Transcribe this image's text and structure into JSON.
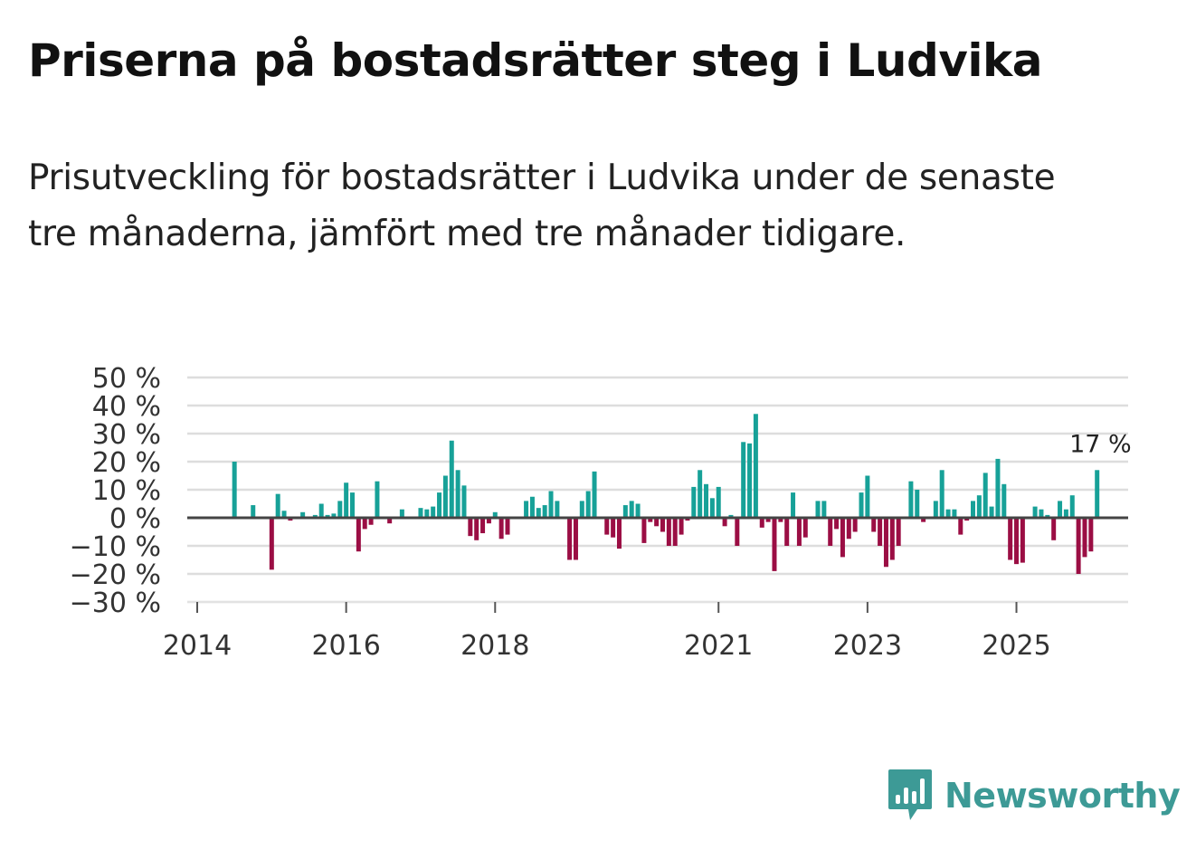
{
  "title": "Priserna på bostadsrätter steg i Ludvika",
  "subtitle": "Prisutveckling för bostadsrätter i Ludvika under de senaste tre månaderna, jämfört med tre månader tidigare.",
  "logo": {
    "text": "Newsworthy",
    "icon": "bar-chart-logo-icon",
    "color": "#3d9a96"
  },
  "colors": {
    "positive": "#17a198",
    "negative": "#9b0e44",
    "grid": "#dddddd",
    "zero_line": "#444444"
  },
  "chart_data": {
    "type": "bar",
    "title": "Priserna på bostadsrätter steg i Ludvika",
    "xlabel": "",
    "ylabel": "",
    "ylim": [
      -30,
      50
    ],
    "y_ticks": [
      50,
      40,
      30,
      20,
      10,
      0,
      -10,
      -20,
      -30
    ],
    "y_tick_labels": [
      "50 %",
      "40 %",
      "30 %",
      "20 %",
      "10 %",
      "0 %",
      "−10 %",
      "−20 %",
      "−30 %"
    ],
    "x_ticks": [
      {
        "label": "2014",
        "month_index": 0
      },
      {
        "label": "2016",
        "month_index": 24
      },
      {
        "label": "2018",
        "month_index": 48
      },
      {
        "label": "2021",
        "month_index": 84
      },
      {
        "label": "2023",
        "month_index": 108
      },
      {
        "label": "2025",
        "month_index": 132
      }
    ],
    "start_month_index": 6,
    "annotation": {
      "label": "17 %",
      "value": 17
    },
    "series": [
      {
        "name": "Prisutveckling",
        "start": "2014-07",
        "frequency": "monthly",
        "values": [
          20,
          0,
          0,
          4.5,
          0,
          0,
          -18.5,
          8.5,
          2.5,
          -1,
          0,
          2,
          0,
          1,
          5,
          1,
          1.5,
          6,
          12.5,
          9,
          -12,
          -4,
          -2.5,
          13,
          0,
          -2,
          0,
          3,
          0,
          0,
          3.5,
          3,
          4,
          9,
          15,
          27.5,
          17,
          11.5,
          -6.5,
          -8,
          -5.5,
          -2,
          2,
          -7.5,
          -6,
          0,
          0,
          6,
          7.5,
          3.5,
          4.5,
          9.5,
          6,
          0,
          -15,
          -15,
          6,
          9.5,
          16.5,
          0,
          -6,
          -7,
          -11,
          4.5,
          6,
          5,
          -9,
          -1.5,
          -3,
          -5,
          -10,
          -10,
          -6,
          -1,
          11,
          17,
          12,
          7,
          11,
          -3,
          1,
          -10,
          27,
          26.5,
          37,
          -3.5,
          -1.5,
          -19,
          -1.5,
          -10,
          9,
          -10,
          -7,
          0,
          6,
          6,
          -10,
          -4,
          -14,
          -7.5,
          -5,
          9,
          15,
          -5,
          -10,
          -17.5,
          -15,
          -10,
          0,
          13,
          10,
          -1.5,
          0,
          6,
          17,
          3,
          3,
          -6,
          -1,
          6,
          8,
          16,
          4,
          21,
          12,
          -15,
          -16.5,
          -16,
          0,
          4,
          3,
          1,
          -8,
          6,
          3,
          8,
          -20,
          -14,
          -12,
          17
        ]
      }
    ]
  }
}
